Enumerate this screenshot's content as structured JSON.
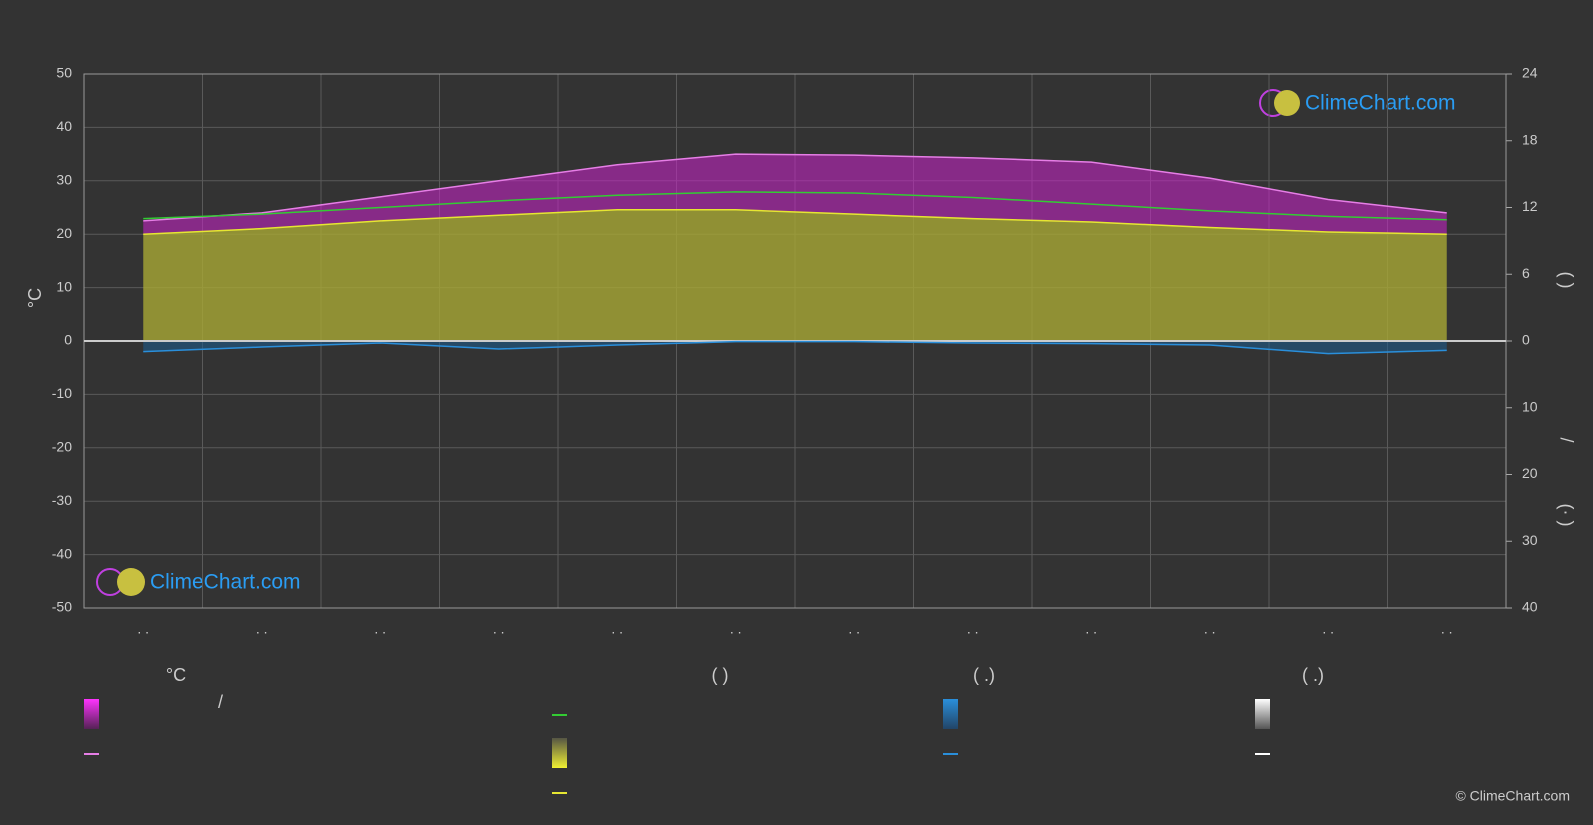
{
  "chart_data": {
    "type": "line",
    "categories": [
      ". .",
      ". .",
      ". .",
      ". .",
      ". .",
      ". .",
      ". .",
      ". .",
      ". .",
      ". .",
      ". .",
      ". ."
    ],
    "y_label": "°C",
    "ylim": [
      -50,
      50
    ],
    "yticks": [
      -50,
      -40,
      -30,
      -20,
      -10,
      0,
      10,
      20,
      30,
      40,
      50
    ],
    "y2lim": [
      0,
      24
    ],
    "y2ticks": [
      0,
      6,
      12,
      18,
      24
    ],
    "y3lim": [
      0,
      40
    ],
    "y3ticks": [
      0,
      10,
      20,
      30,
      40
    ],
    "right_axis_labels": [
      "(   )",
      "/",
      "(·  )"
    ],
    "grid": true,
    "series": [
      {
        "color": "#e67ee6",
        "axis": "y",
        "values": [
          22.5,
          24,
          27,
          30,
          33,
          35,
          34.8,
          34.3,
          33.5,
          30.5,
          26.5,
          24
        ]
      },
      {
        "color": "#33cc33",
        "axis": "y2",
        "values": [
          11.0,
          11.4,
          12.0,
          12.6,
          13.1,
          13.4,
          13.3,
          12.9,
          12.3,
          11.7,
          11.2,
          10.9
        ]
      },
      {
        "color": "#e6e632",
        "axis": "y2",
        "values": [
          9.6,
          10.1,
          10.8,
          11.3,
          11.8,
          11.8,
          11.4,
          11.0,
          10.7,
          10.2,
          9.8,
          9.6
        ]
      },
      {
        "color": "#2a8fdb",
        "axis": "y3",
        "values": [
          1.6,
          0.9,
          0.3,
          1.2,
          0.6,
          0.1,
          0.1,
          0.3,
          0.4,
          0.6,
          1.9,
          1.4
        ]
      }
    ],
    "legend_headers": [
      "°C",
      "(          )",
      "(   .)",
      "(   .)"
    ],
    "legend_slash": "/",
    "logo_text": "ClimeChart.com",
    "copyright": "© ClimeChart.com"
  }
}
